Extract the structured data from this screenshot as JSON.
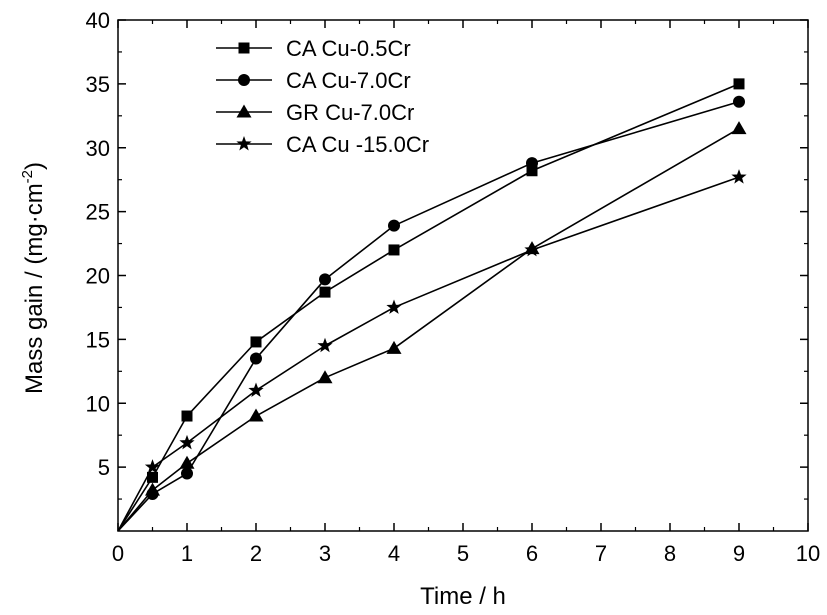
{
  "chart_data": {
    "type": "line",
    "xlabel": "Time / h",
    "ylabel_main": "Mass gain / (mg·cm",
    "ylabel_sup": "-2",
    "ylabel_close": ")",
    "xlim": [
      0,
      10
    ],
    "ylim": [
      0,
      40
    ],
    "xticks": [
      "0",
      "1",
      "2",
      "3",
      "4",
      "5",
      "6",
      "7",
      "8",
      "9",
      "10"
    ],
    "yticks": [
      "5",
      "10",
      "15",
      "20",
      "25",
      "30",
      "35",
      "40"
    ],
    "legend_position": "top-left",
    "grid": false,
    "series": [
      {
        "name": "CA Cu-0.5Cr",
        "marker": "square",
        "points": [
          [
            0,
            0
          ],
          [
            0.5,
            4.2
          ],
          [
            1,
            9.0
          ],
          [
            2,
            14.8
          ],
          [
            3,
            18.7
          ],
          [
            4,
            22.0
          ],
          [
            6,
            28.2
          ],
          [
            9,
            35.0
          ]
        ]
      },
      {
        "name": "CA Cu-7.0Cr",
        "marker": "circle",
        "points": [
          [
            0,
            0
          ],
          [
            0.5,
            2.9
          ],
          [
            1,
            4.5
          ],
          [
            2,
            13.5
          ],
          [
            3,
            19.7
          ],
          [
            4,
            23.9
          ],
          [
            6,
            28.8
          ],
          [
            9,
            33.6
          ]
        ]
      },
      {
        "name": "GR Cu-7.0Cr",
        "marker": "triangle",
        "points": [
          [
            0,
            0
          ],
          [
            0.5,
            3.2
          ],
          [
            1,
            5.3
          ],
          [
            2,
            9.0
          ],
          [
            3,
            12.0
          ],
          [
            4,
            14.3
          ],
          [
            6,
            22.1
          ],
          [
            9,
            31.5
          ]
        ]
      },
      {
        "name": "CA Cu -15.0Cr",
        "marker": "star",
        "points": [
          [
            0,
            0
          ],
          [
            0.5,
            5.0
          ],
          [
            1,
            6.9
          ],
          [
            2,
            11.0
          ],
          [
            3,
            14.5
          ],
          [
            4,
            17.5
          ],
          [
            6,
            22.0
          ],
          [
            9,
            27.7
          ]
        ]
      }
    ]
  }
}
